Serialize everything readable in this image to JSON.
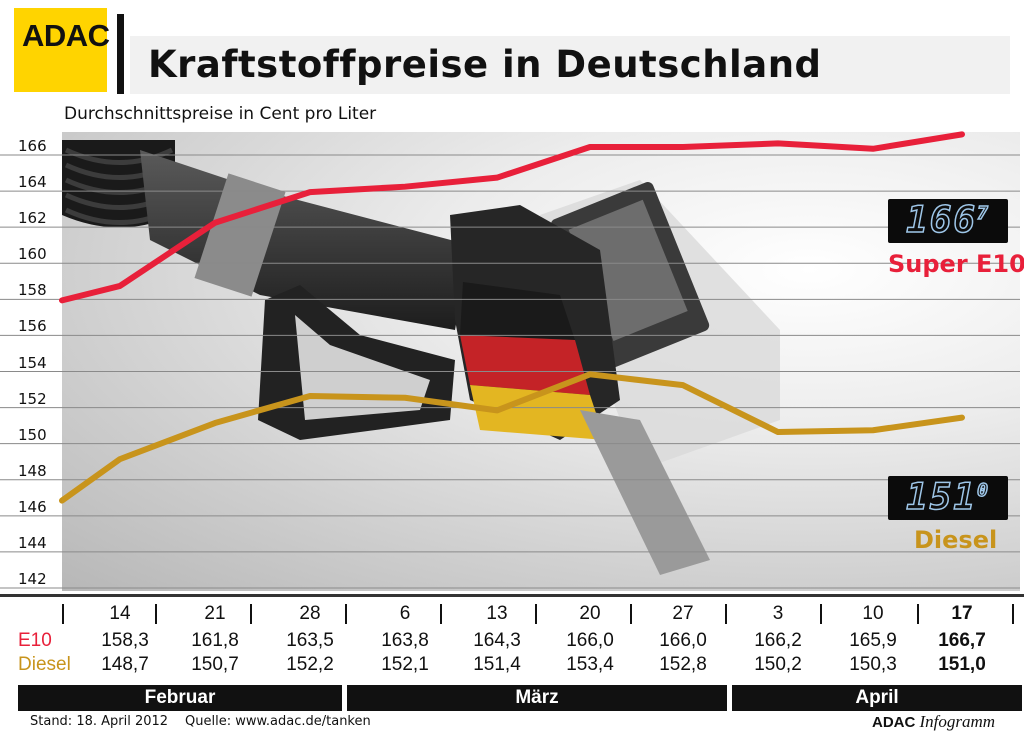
{
  "header": {
    "logo_text": "ADAC",
    "title": "Kraftstoffpreise in Deutschland",
    "subtitle": "Durchschnittspreise in Cent pro Liter"
  },
  "colors": {
    "e10": "#e8203a",
    "diesel": "#c8941c",
    "logo": "#ffd400"
  },
  "chart_data": {
    "type": "line",
    "title": "Kraftstoffpreise in Deutschland",
    "ylabel": "Durchschnittspreise in Cent pro Liter",
    "ylim": [
      142,
      166
    ],
    "yticks": [
      "142",
      "144",
      "146",
      "148",
      "150",
      "152",
      "154",
      "156",
      "158",
      "160",
      "162",
      "164",
      "166"
    ],
    "grid": true,
    "x": [
      "14",
      "21",
      "28",
      "6",
      "13",
      "20",
      "27",
      "3",
      "10",
      "17"
    ],
    "months": [
      "Februar",
      "März",
      "April"
    ],
    "series": [
      {
        "name": "Super E10",
        "row_label": "E10",
        "values": [
          158.3,
          161.8,
          163.5,
          163.8,
          164.3,
          166.0,
          166.0,
          166.2,
          165.9,
          166.7
        ],
        "labels": [
          "158,3",
          "161,8",
          "163,5",
          "163,8",
          "164,3",
          "166,0",
          "166,0",
          "166,2",
          "165,9",
          "166,7"
        ],
        "start_value": 157.5,
        "display": "166",
        "display_sup": "7"
      },
      {
        "name": "Diesel",
        "row_label": "Diesel",
        "values": [
          148.7,
          150.7,
          152.2,
          152.1,
          151.4,
          153.4,
          152.8,
          150.2,
          150.3,
          151.0
        ],
        "labels": [
          "148,7",
          "150,7",
          "152,2",
          "152,1",
          "151,4",
          "153,4",
          "152,8",
          "150,2",
          "150,3",
          "151,0"
        ],
        "start_value": 146.4,
        "display": "151",
        "display_sup": "0"
      }
    ]
  },
  "footer": {
    "stand": "Stand: 18. April 2012",
    "quelle": "Quelle: www.adac.de/tanken",
    "brand": "ADAC",
    "brand_italic": "Infogramm"
  }
}
